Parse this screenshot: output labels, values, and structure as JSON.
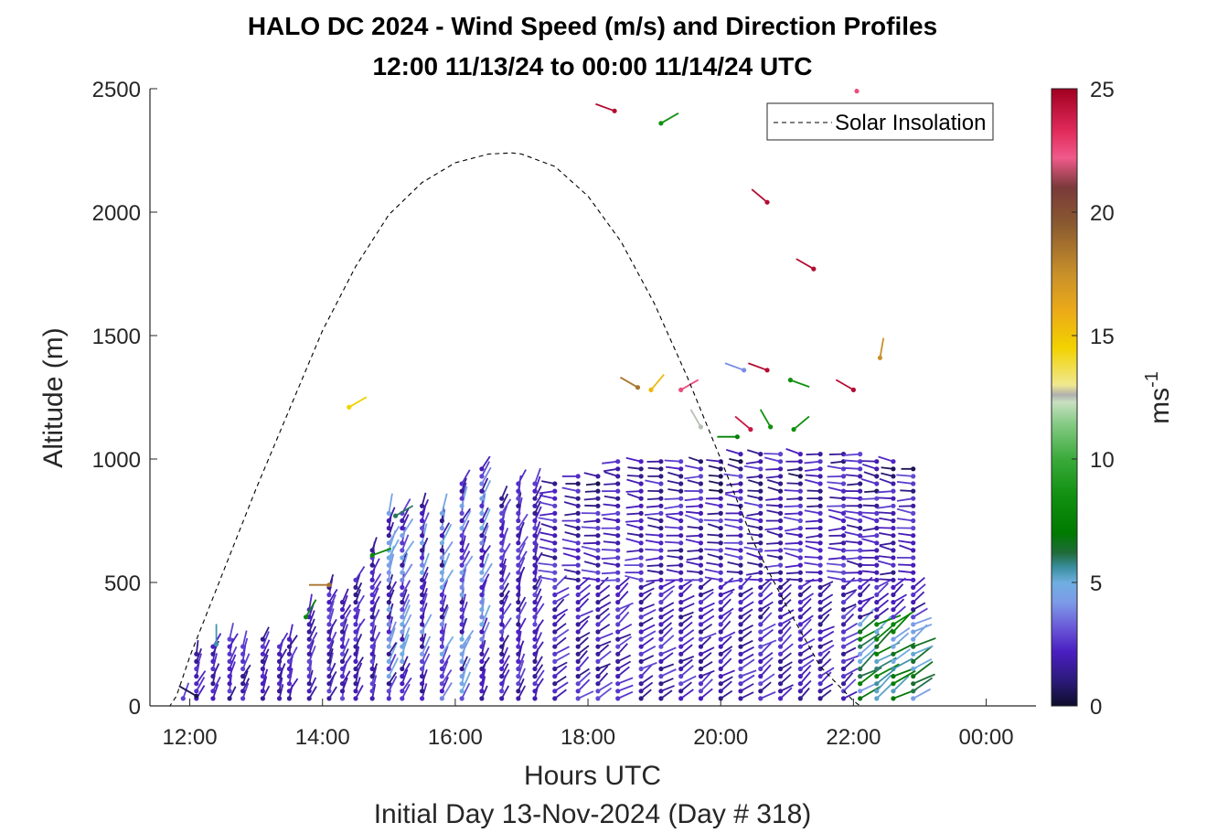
{
  "chart_data": {
    "type": "wind-barb-profile",
    "title": [
      "HALO DC 2024 - Wind Speed (m/s) and Direction Profiles",
      "12:00 11/13/24 to 00:00 11/14/24  UTC"
    ],
    "xlabel": "Hours UTC",
    "subtitle": "Initial Day 13-Nov-2024 (Day # 318)",
    "ylabel": "Altitude (m)",
    "xlim_hours": [
      11.4,
      24.75
    ],
    "ylim": [
      0,
      2500
    ],
    "x_ticks": [
      {
        "hour": 12,
        "label": "12:00"
      },
      {
        "hour": 14,
        "label": "14:00"
      },
      {
        "hour": 16,
        "label": "16:00"
      },
      {
        "hour": 18,
        "label": "18:00"
      },
      {
        "hour": 20,
        "label": "20:00"
      },
      {
        "hour": 22,
        "label": "22:00"
      },
      {
        "hour": 24,
        "label": "00:00"
      }
    ],
    "y_ticks": [
      0,
      500,
      1000,
      1500,
      2000,
      2500
    ],
    "colorbar": {
      "label_base": "ms",
      "label_exp": "-1",
      "range": [
        0,
        25
      ],
      "ticks": [
        0,
        5,
        10,
        15,
        20,
        25
      ],
      "stops": [
        {
          "v": 0,
          "c": "#0d0d2b"
        },
        {
          "v": 1,
          "c": "#2b1a78"
        },
        {
          "v": 2.2,
          "c": "#4b1ec2"
        },
        {
          "v": 3.2,
          "c": "#6a5ad8"
        },
        {
          "v": 4.2,
          "c": "#7d9be8"
        },
        {
          "v": 5,
          "c": "#6faee0"
        },
        {
          "v": 5.6,
          "c": "#3a8fa0"
        },
        {
          "v": 6.2,
          "c": "#1f6b3a"
        },
        {
          "v": 7,
          "c": "#007a00"
        },
        {
          "v": 8.5,
          "c": "#109010"
        },
        {
          "v": 10,
          "c": "#3aaa3a"
        },
        {
          "v": 11.5,
          "c": "#8acc8a"
        },
        {
          "v": 12.3,
          "c": "#c8e0c0"
        },
        {
          "v": 12.6,
          "c": "#b0b0b0"
        },
        {
          "v": 13,
          "c": "#f0e890"
        },
        {
          "v": 14.5,
          "c": "#f2d200"
        },
        {
          "v": 16,
          "c": "#ecaa18"
        },
        {
          "v": 17.5,
          "c": "#c8902a"
        },
        {
          "v": 19.5,
          "c": "#8a5a30"
        },
        {
          "v": 21,
          "c": "#7a3a3a"
        },
        {
          "v": 22.2,
          "c": "#f05a8a"
        },
        {
          "v": 23.3,
          "c": "#e02a5a"
        },
        {
          "v": 25,
          "c": "#a00020"
        }
      ]
    },
    "legend": {
      "label": "Solar Insolation",
      "location": "top-right",
      "style": "dashed"
    },
    "solar_insolation": {
      "x_hours": [
        11.55,
        11.7,
        11.8,
        12.0,
        12.5,
        13.0,
        13.5,
        14.0,
        14.5,
        15.0,
        15.5,
        16.0,
        16.5,
        16.85,
        17.0,
        17.5,
        18.0,
        18.5,
        19.0,
        19.5,
        20.0,
        20.5,
        21.0,
        21.5,
        22.0,
        22.1,
        22.3,
        24.75
      ],
      "altitude_equiv_m": [
        0,
        0,
        40,
        200,
        540,
        880,
        1200,
        1520,
        1780,
        1990,
        2120,
        2200,
        2235,
        2240,
        2235,
        2185,
        2065,
        1880,
        1630,
        1330,
        1000,
        660,
        400,
        160,
        20,
        0,
        0,
        0
      ]
    },
    "profiles": {
      "x_hours": [
        11.9,
        12.1,
        12.35,
        12.6,
        12.8,
        13.1,
        13.35,
        13.5,
        13.8,
        14.1,
        14.3,
        14.5,
        14.75,
        15.0,
        15.2,
        15.5,
        15.8,
        16.1,
        16.4,
        16.7,
        16.95,
        17.2,
        17.5,
        17.85,
        18.15,
        18.45,
        18.8,
        19.1,
        19.4,
        19.7,
        20.0,
        20.3,
        20.6,
        20.9,
        21.2,
        21.5,
        21.85,
        22.1,
        22.35,
        22.6,
        22.9
      ],
      "top_altitude_m": [
        30,
        230,
        260,
        280,
        260,
        280,
        260,
        290,
        390,
        480,
        440,
        520,
        640,
        790,
        780,
        820,
        790,
        900,
        960,
        860,
        900,
        910,
        920,
        940,
        930,
        990,
        990,
        1000,
        1000,
        1010,
        1000,
        1020,
        1030,
        1030,
        1040,
        1040,
        1030,
        1020,
        1010,
        990,
        960
      ],
      "speed_note": "mostly 1-3 m/s (purple), with 4-8 m/s near surface after 22:00 and isolated upper-level barbs of 6-25 m/s"
    },
    "upper_barbs": [
      {
        "h": 12.1,
        "alt": 40,
        "speed": 0.5
      },
      {
        "h": 14.4,
        "alt": 1210,
        "speed": 14.5
      },
      {
        "h": 18.4,
        "alt": 2410,
        "speed": 24.5
      },
      {
        "h": 19.1,
        "alt": 2360,
        "speed": 8.5
      },
      {
        "h": 20.7,
        "alt": 2040,
        "speed": 24.5
      },
      {
        "h": 21.4,
        "alt": 1770,
        "speed": 24.5
      },
      {
        "h": 22.05,
        "alt": 2490,
        "speed": 22.5
      },
      {
        "h": 22.4,
        "alt": 1410,
        "speed": 17.5
      },
      {
        "h": 18.75,
        "alt": 1290,
        "speed": 18.5
      },
      {
        "h": 18.95,
        "alt": 1280,
        "speed": 15.5
      },
      {
        "h": 19.4,
        "alt": 1280,
        "speed": 22.5
      },
      {
        "h": 20.35,
        "alt": 1360,
        "speed": 4.0
      },
      {
        "h": 20.7,
        "alt": 1360,
        "speed": 24.5
      },
      {
        "h": 21.05,
        "alt": 1320,
        "speed": 8.5
      },
      {
        "h": 22.0,
        "alt": 1280,
        "speed": 24.5
      },
      {
        "h": 19.7,
        "alt": 1130,
        "speed": 12.5
      },
      {
        "h": 20.25,
        "alt": 1090,
        "speed": 7.5
      },
      {
        "h": 20.45,
        "alt": 1120,
        "speed": 24.0
      },
      {
        "h": 20.75,
        "alt": 1130,
        "speed": 8.5
      },
      {
        "h": 21.1,
        "alt": 1120,
        "speed": 8.5
      },
      {
        "h": 15.1,
        "alt": 770,
        "speed": 6.0
      },
      {
        "h": 14.75,
        "alt": 610,
        "speed": 8.0
      },
      {
        "h": 14.1,
        "alt": 490,
        "speed": 18.5
      },
      {
        "h": 13.75,
        "alt": 360,
        "speed": 8.0
      },
      {
        "h": 12.4,
        "alt": 250,
        "speed": 5.5
      }
    ]
  }
}
